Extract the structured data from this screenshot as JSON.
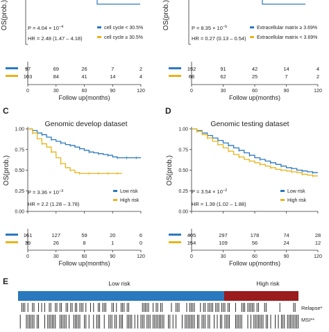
{
  "colors": {
    "blue": "#2a78bd",
    "gold": "#e6b417",
    "red": "#9b1c1c",
    "axis": "#333333"
  },
  "chart_data": [
    {
      "id": "A",
      "type": "line",
      "panel_letter": "",
      "title": "",
      "ylabel": "OS(prob.)",
      "xlabel": "",
      "ylim": [
        0,
        1
      ],
      "yticks_visible": [],
      "stats": {
        "p_text": "P = 4.04 × 10",
        "p_exp": "−4",
        "hr_text": "HR = 2.48 (1.47 – 4.18)"
      },
      "legend": [
        "cell cycle < 30.5%",
        "cell cycle ≥ 30.5%"
      ],
      "series_visible_y": [
        0.5
      ],
      "risk_table": {
        "rows": [
          [
            "97",
            "69",
            "26",
            "7",
            "2"
          ],
          [
            "103",
            "84",
            "41",
            "14",
            "4"
          ]
        ],
        "xticks": [
          "0",
          "30",
          "60",
          "90",
          "120"
        ],
        "xlabel": "Follow up(months)"
      }
    },
    {
      "id": "B",
      "type": "line",
      "panel_letter": "",
      "title": "",
      "ylabel": "OS(prob.)",
      "xlabel": "",
      "ylim": [
        0,
        1
      ],
      "yticks_visible": [],
      "stats": {
        "p_text": "P = 8.35 × 10",
        "p_exp": "−5",
        "hr_text": "HR = 0.27 (0.13 – 0.54)"
      },
      "legend": [
        "Extracellular matrix ≥ 3.69%",
        "Extracellular matrix < 3.69%"
      ],
      "series_visible_y": [
        0.5
      ],
      "risk_table": {
        "rows": [
          [
            "132",
            "91",
            "42",
            "14",
            "4"
          ],
          [
            "68",
            "62",
            "25",
            "7",
            "2"
          ]
        ],
        "xticks": [
          "0",
          "30",
          "60",
          "90",
          "120"
        ],
        "xlabel": "Follow up(months)"
      }
    },
    {
      "id": "C",
      "type": "line",
      "panel_letter": "C",
      "title": "Genomic develop dataset",
      "ylabel": "OS(prob.)",
      "xlabel": "",
      "xlim": [
        0,
        120
      ],
      "ylim": [
        0,
        1
      ],
      "yticks": [
        "0.00",
        "0.25",
        "0.50",
        "0.75",
        "1.00"
      ],
      "stats": {
        "p_text": "P = 3.36 × 10",
        "p_exp": "−3",
        "hr_text": "HR = 2.2 (1.28 – 3.78)"
      },
      "legend": [
        "Low risk",
        "High risk"
      ],
      "series": [
        {
          "name": "Low risk",
          "color": "blue",
          "x": [
            0,
            5,
            10,
            15,
            20,
            25,
            30,
            35,
            40,
            45,
            50,
            55,
            60,
            65,
            70,
            75,
            80,
            85,
            90,
            95,
            100,
            105,
            110,
            115,
            120
          ],
          "y": [
            1.0,
            0.98,
            0.95,
            0.93,
            0.9,
            0.87,
            0.85,
            0.83,
            0.81,
            0.8,
            0.78,
            0.76,
            0.74,
            0.72,
            0.71,
            0.7,
            0.69,
            0.68,
            0.66,
            0.65,
            0.65,
            0.65,
            0.65,
            0.65,
            0.65
          ]
        },
        {
          "name": "High risk",
          "color": "gold",
          "x": [
            0,
            5,
            10,
            15,
            20,
            25,
            30,
            35,
            40,
            45,
            50,
            55,
            60,
            65,
            70,
            75,
            80,
            85,
            90,
            95,
            100
          ],
          "y": [
            1.0,
            0.95,
            0.88,
            0.82,
            0.78,
            0.72,
            0.65,
            0.58,
            0.53,
            0.5,
            0.47,
            0.46,
            0.46,
            0.46,
            0.46,
            0.46,
            0.46,
            0.46,
            0.46,
            0.46,
            0.46
          ]
        }
      ],
      "risk_table": {
        "rows": [
          [
            "161",
            "127",
            "59",
            "20",
            "6"
          ],
          [
            "39",
            "26",
            "8",
            "1",
            "0"
          ]
        ],
        "xticks": [
          "0",
          "30",
          "60",
          "90",
          "120"
        ],
        "xlabel": "Follow up(months)"
      }
    },
    {
      "id": "D",
      "type": "line",
      "panel_letter": "D",
      "title": "Genomic testing dataset",
      "ylabel": "OS(prob.)",
      "xlabel": "",
      "xlim": [
        0,
        120
      ],
      "ylim": [
        0,
        1
      ],
      "yticks": [
        "0.00",
        "0.25",
        "0.50",
        "0.75",
        "1.00"
      ],
      "stats": {
        "p_text": "P = 3.54 × 10",
        "p_exp": "−2",
        "hr_text": "HR = 1.39 (1.02 – 1.88)"
      },
      "legend": [
        "Low risk",
        "High risk"
      ],
      "series": [
        {
          "name": "Low risk",
          "color": "blue",
          "x": [
            0,
            5,
            10,
            15,
            20,
            25,
            30,
            35,
            40,
            45,
            50,
            55,
            60,
            65,
            70,
            75,
            80,
            85,
            90,
            95,
            100,
            105,
            110,
            115,
            120
          ],
          "y": [
            1.0,
            0.98,
            0.95,
            0.92,
            0.89,
            0.86,
            0.83,
            0.8,
            0.77,
            0.74,
            0.71,
            0.68,
            0.65,
            0.63,
            0.61,
            0.59,
            0.57,
            0.55,
            0.53,
            0.52,
            0.5,
            0.49,
            0.48,
            0.47,
            0.47
          ]
        },
        {
          "name": "High risk",
          "color": "gold",
          "x": [
            0,
            5,
            10,
            15,
            20,
            25,
            30,
            35,
            40,
            45,
            50,
            55,
            60,
            65,
            70,
            75,
            80,
            85,
            90,
            95,
            100,
            105,
            110,
            115,
            120
          ],
          "y": [
            1.0,
            0.97,
            0.93,
            0.89,
            0.85,
            0.81,
            0.77,
            0.73,
            0.69,
            0.66,
            0.63,
            0.61,
            0.59,
            0.57,
            0.55,
            0.53,
            0.51,
            0.5,
            0.49,
            0.48,
            0.47,
            0.45,
            0.44,
            0.43,
            0.43
          ]
        }
      ],
      "risk_table": {
        "rows": [
          [
            "405",
            "297",
            "178",
            "74",
            "28"
          ],
          [
            "154",
            "109",
            "56",
            "24",
            "12"
          ]
        ],
        "xticks": [
          "0",
          "30",
          "60",
          "90",
          "120"
        ],
        "xlabel": "Follow up(months)"
      }
    }
  ],
  "panel_e": {
    "letter": "E",
    "low_label": "Low risk",
    "high_label": "High risk",
    "low_fraction": 0.735,
    "tracks": [
      "Relapse*",
      "MSI**"
    ]
  }
}
